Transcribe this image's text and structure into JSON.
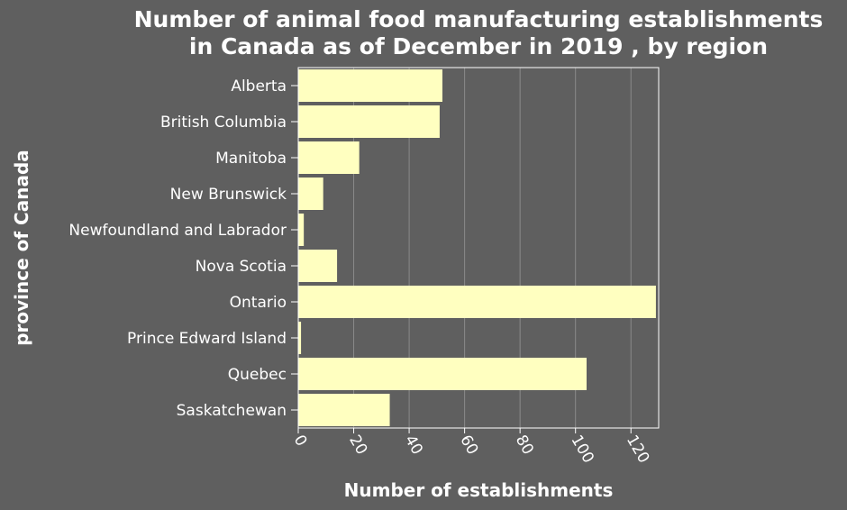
{
  "colors": {
    "background": "#5f5f5f",
    "bar": "#ffffc0",
    "grid": "#8a8a8a",
    "axis": "#ffffff",
    "text": "#ffffff"
  },
  "chart_data": {
    "type": "bar",
    "orientation": "horizontal",
    "title": "Number of animal food manufacturing establishments in Canada as of December in 2019 , by region",
    "title_lines": [
      "Number of animal food manufacturing establishments",
      "in Canada as of December in 2019 , by region"
    ],
    "xlabel": "Number of establishments",
    "ylabel": "province of Canada",
    "categories": [
      "Alberta",
      "British Columbia",
      "Manitoba",
      "New Brunswick",
      "Newfoundland and Labrador",
      "Nova Scotia",
      "Ontario",
      "Prince Edward Island",
      "Quebec",
      "Saskatchewan"
    ],
    "values": [
      52,
      51,
      22,
      9,
      2,
      14,
      129,
      1,
      104,
      33
    ],
    "xlim": [
      0,
      130
    ],
    "xticks": [
      0,
      20,
      40,
      60,
      80,
      100,
      120
    ],
    "grid": true,
    "legend": "none"
  }
}
